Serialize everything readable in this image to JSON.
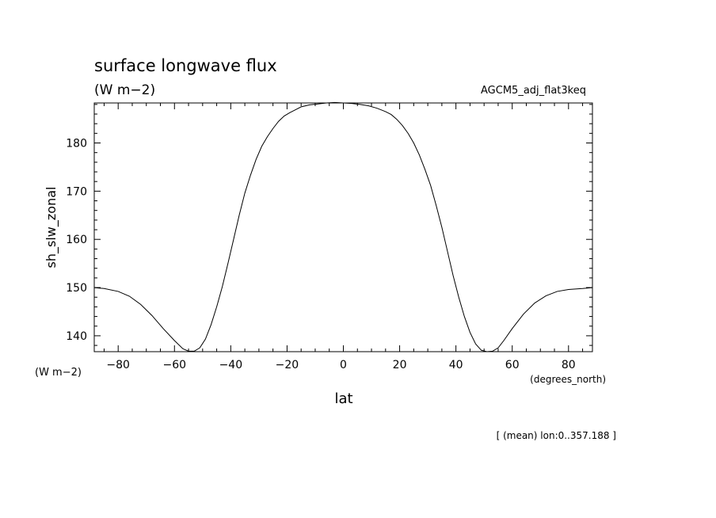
{
  "chart_data": {
    "type": "line",
    "title": "surface longwave flux",
    "units": "(W m−2)",
    "dataset": "AGCM5_adj_flat3keq",
    "xlabel": "lat",
    "xunits": "(degrees_north)",
    "ylabel": "sh_slw_zonal",
    "yunits": "(W m−2)",
    "footer": "[ (mean) lon:0..357.188 ]",
    "xlim": [
      -88.5,
      88.5
    ],
    "ylim": [
      136.7,
      188.3
    ],
    "xticks": [
      -80,
      -60,
      -40,
      -20,
      0,
      20,
      40,
      60,
      80
    ],
    "xtick_labels": [
      "−80",
      "−60",
      "−40",
      "−20",
      "0",
      "20",
      "40",
      "60",
      "80"
    ],
    "yticks": [
      140,
      150,
      160,
      170,
      180
    ],
    "ytick_labels": [
      "140",
      "150",
      "160",
      "170",
      "180"
    ],
    "grid": false,
    "x": [
      -88.5,
      -85,
      -80,
      -76,
      -72,
      -68,
      -64,
      -60,
      -57,
      -55,
      -53,
      -51,
      -49,
      -47,
      -45,
      -43,
      -41,
      -39,
      -37,
      -35,
      -33,
      -31,
      -29,
      -27,
      -25,
      -23,
      -21,
      -19,
      -17,
      -15,
      -12,
      -9,
      -6,
      -3,
      0,
      3,
      6,
      9,
      12,
      15,
      17,
      19,
      21,
      23,
      25,
      27,
      29,
      31,
      33,
      35,
      37,
      39,
      41,
      43,
      45,
      47,
      49,
      51,
      53,
      55,
      57,
      60,
      64,
      68,
      72,
      76,
      80,
      85,
      88.5
    ],
    "y": [
      150.0,
      149.8,
      149.2,
      148.2,
      146.5,
      144.2,
      141.5,
      139.0,
      137.3,
      136.8,
      136.8,
      137.5,
      139.3,
      142.3,
      146.0,
      150.2,
      155.0,
      160.0,
      165.0,
      169.6,
      173.3,
      176.6,
      179.3,
      181.3,
      183.0,
      184.5,
      185.6,
      186.3,
      186.9,
      187.5,
      187.9,
      188.1,
      188.3,
      188.4,
      188.3,
      188.2,
      188.0,
      187.7,
      187.2,
      186.5,
      185.9,
      184.9,
      183.6,
      182.0,
      180.0,
      177.5,
      174.5,
      171.2,
      167.0,
      162.5,
      157.5,
      152.5,
      148.0,
      144.0,
      140.7,
      138.3,
      137.0,
      136.7,
      136.8,
      137.5,
      139.0,
      141.5,
      144.5,
      146.8,
      148.3,
      149.2,
      149.6,
      149.8,
      150.0
    ]
  }
}
